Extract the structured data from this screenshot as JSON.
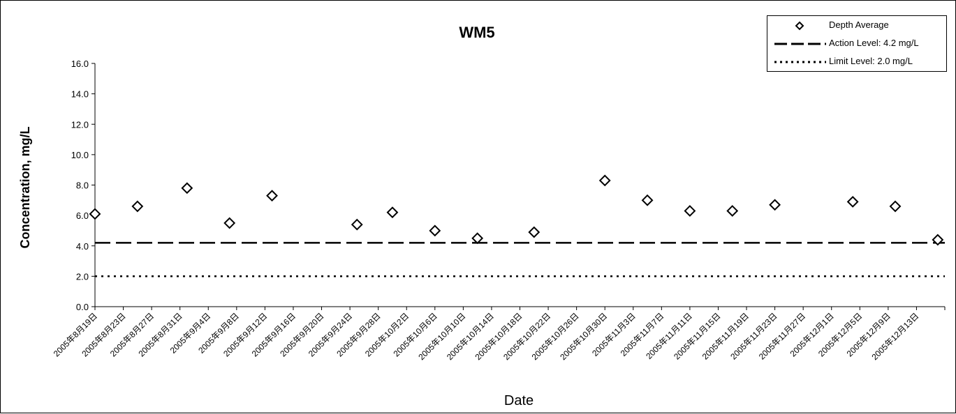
{
  "chart_data": {
    "type": "scatter",
    "title": "WM5",
    "xlabel": "Date",
    "ylabel": "Concentration, mg/L",
    "ylim": [
      0,
      16
    ],
    "y_ticks": [
      "0.0",
      "2.0",
      "4.0",
      "6.0",
      "8.0",
      "10.0",
      "12.0",
      "14.0",
      "16.0"
    ],
    "x_ticks": [
      "2005年8月19日",
      "2005年8月23日",
      "2005年8月27日",
      "2005年8月31日",
      "2005年9月4日",
      "2005年9月8日",
      "2005年9月12日",
      "2005年9月16日",
      "2005年9月20日",
      "2005年9月24日",
      "2005年9月28日",
      "2005年10月2日",
      "2005年10月6日",
      "2005年10月10日",
      "2005年10月14日",
      "2005年10月18日",
      "2005年10月22日",
      "2005年10月26日",
      "2005年10月30日",
      "2005年11月3日",
      "2005年11月7日",
      "2005年11月11日",
      "2005年11月15日",
      "2005年11月19日",
      "2005年11月23日",
      "2005年11月27日",
      "2005年12月1日",
      "2005年12月5日",
      "2005年12月9日",
      "2005年12月13日"
    ],
    "x_range": [
      "2005-08-19",
      "2005-12-17"
    ],
    "series": [
      {
        "name": "Depth Average",
        "marker": "diamond",
        "points": [
          {
            "x": "2005-08-19",
            "y": 6.1
          },
          {
            "x": "2005-08-25",
            "y": 6.6
          },
          {
            "x": "2005-09-01",
            "y": 7.8
          },
          {
            "x": "2005-09-07",
            "y": 5.5
          },
          {
            "x": "2005-09-13",
            "y": 7.3
          },
          {
            "x": "2005-09-25",
            "y": 5.4
          },
          {
            "x": "2005-09-30",
            "y": 6.2
          },
          {
            "x": "2005-10-06",
            "y": 5.0
          },
          {
            "x": "2005-10-12",
            "y": 4.5
          },
          {
            "x": "2005-10-20",
            "y": 4.9
          },
          {
            "x": "2005-10-30",
            "y": 8.3
          },
          {
            "x": "2005-11-05",
            "y": 7.0
          },
          {
            "x": "2005-11-11",
            "y": 6.3
          },
          {
            "x": "2005-11-17",
            "y": 6.3
          },
          {
            "x": "2005-11-23",
            "y": 6.7
          },
          {
            "x": "2005-12-04",
            "y": 6.9
          },
          {
            "x": "2005-12-10",
            "y": 6.6
          },
          {
            "x": "2005-12-16",
            "y": 4.4
          }
        ]
      },
      {
        "name": "Action Level: 4.2 mg/L",
        "type": "hline",
        "y": 4.2,
        "style": "dashed"
      },
      {
        "name": "Limit Level: 2.0 mg/L",
        "type": "hline",
        "y": 2.0,
        "style": "dotted"
      }
    ],
    "legend": {
      "position": "top-right"
    },
    "grid": false
  }
}
